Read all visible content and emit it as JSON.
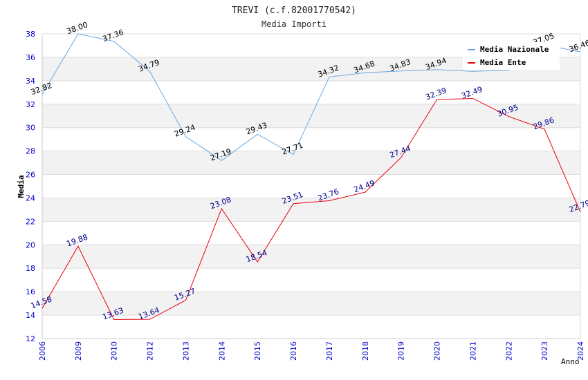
{
  "chart_data": {
    "type": "line",
    "title": "TREVI (c.f.82001770542)",
    "subtitle": "Media Importi",
    "xlabel": "Anno",
    "ylabel": "Media",
    "ylim": [
      12,
      38
    ],
    "yticks": [
      12,
      14,
      16,
      18,
      20,
      22,
      24,
      26,
      28,
      30,
      32,
      34,
      36,
      38
    ],
    "categories": [
      "2006",
      "2009",
      "2010",
      "2012",
      "2013",
      "2014",
      "2015",
      "2016",
      "2017",
      "2018",
      "2019",
      "2020",
      "2021",
      "2022",
      "2023",
      "2024"
    ],
    "grid": true,
    "legend_position": "top-right",
    "series": [
      {
        "name": "Media Nazionale",
        "color": "#6aa8e0",
        "label_color": "#000000",
        "values": [
          32.82,
          38.0,
          37.36,
          34.79,
          29.24,
          27.19,
          29.43,
          27.71,
          34.32,
          34.68,
          34.83,
          34.94,
          34.8,
          34.9,
          37.05,
          36.46
        ],
        "labels": [
          "32.82",
          "38.00",
          "37.36",
          "34.79",
          "29.24",
          "27.19",
          "29.43",
          "27.71",
          "34.32",
          "34.68",
          "34.83",
          "34.94",
          "",
          "",
          "37.05",
          "36.46"
        ]
      },
      {
        "name": "Media Ente",
        "color": "#e8000b",
        "label_color": "#00008b",
        "values": [
          14.58,
          19.88,
          13.63,
          13.64,
          15.27,
          23.08,
          18.54,
          23.51,
          23.76,
          24.49,
          27.44,
          32.39,
          32.49,
          30.95,
          29.86,
          22.79
        ],
        "labels": [
          "14.58",
          "19.88",
          "13.63",
          "13.64",
          "15.27",
          "23.08",
          "18.54",
          "23.51",
          "23.76",
          "24.49",
          "27.44",
          "32.39",
          "32.49",
          "30.95",
          "29.86",
          "22.79"
        ]
      }
    ]
  }
}
